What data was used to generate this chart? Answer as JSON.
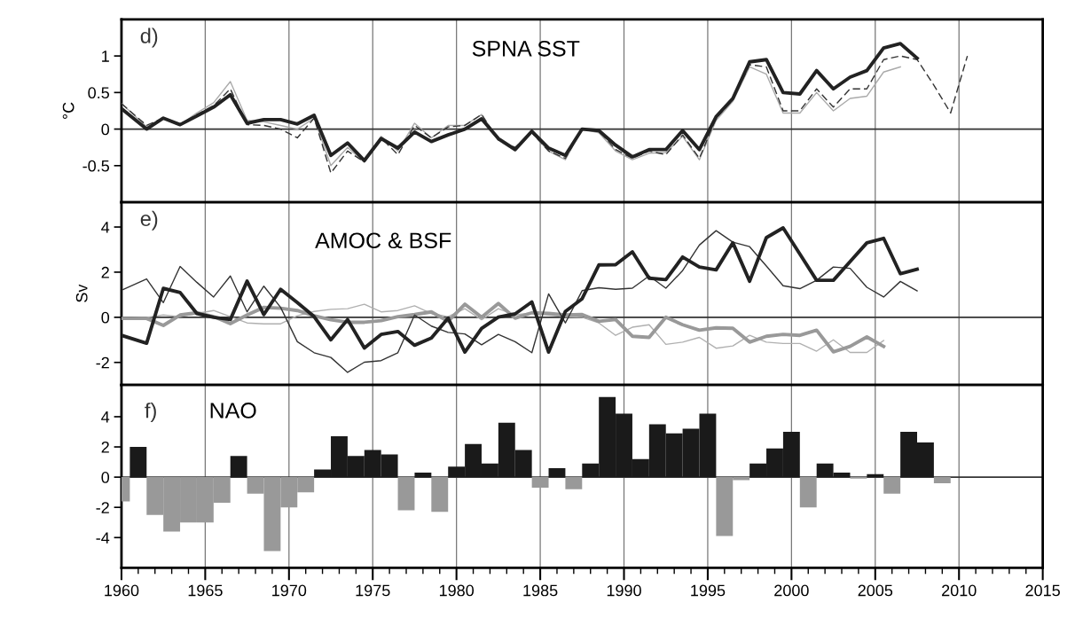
{
  "chart_data": [
    {
      "type": "line",
      "ylabel": "°C",
      "annotations": [
        "d)",
        "SPNA SST"
      ],
      "xlim": [
        1960,
        2015
      ],
      "xticks": [
        1960,
        1965,
        1970,
        1975,
        1980,
        1985,
        1990,
        1995,
        2000,
        2005,
        2010,
        2015
      ],
      "ylim": [
        -1.0,
        1.5
      ],
      "yticks": [
        -0.5,
        0,
        0.5,
        1
      ],
      "grid": "x",
      "tick_labels": "y",
      "ref_lines": [
        {
          "axis": "y",
          "value": 0,
          "color": "#333333"
        }
      ],
      "x": [
        1960,
        1961.5,
        1962.5,
        1963.5,
        1964.5,
        1965.5,
        1966.5,
        1967.5,
        1968.5,
        1969.5,
        1970.5,
        1971.5,
        1972.5,
        1973.5,
        1974.5,
        1975.5,
        1976.5,
        1977.5,
        1978.5,
        1979.5,
        1980.5,
        1981.5,
        1982.5,
        1983.5,
        1984.5,
        1985.5,
        1986.5,
        1987.5,
        1988.5,
        1989.5,
        1990.5,
        1991.5,
        1992.5,
        1993.5,
        1994.5,
        1995.5,
        1996.5,
        1997.5,
        1998.5,
        1999.5,
        2000.5,
        2001.5,
        2002.5,
        2003.5,
        2004.5,
        2005.5,
        2006.5,
        2007.5,
        2008.5,
        2009.5,
        2010.5
      ],
      "series": [
        {
          "color": "#aaaaaa",
          "line_style": "solid",
          "values": [
            0.35,
            0.03,
            0.15,
            0.06,
            0.22,
            0.36,
            0.65,
            0.12,
            0.1,
            0.05,
            0.0,
            0.15,
            -0.5,
            -0.25,
            -0.45,
            -0.1,
            -0.3,
            0.08,
            -0.12,
            0.05,
            0.05,
            0.2,
            -0.15,
            -0.3,
            -0.05,
            -0.3,
            -0.42,
            0.0,
            -0.05,
            -0.3,
            -0.42,
            -0.33,
            -0.32,
            -0.1,
            -0.42,
            0.12,
            0.38,
            0.85,
            0.75,
            0.22,
            0.22,
            0.5,
            0.25,
            0.42,
            0.45,
            0.78,
            0.85,
            null,
            null,
            null,
            null
          ]
        },
        {
          "color": "#333333",
          "line_style": "dashed",
          "values": [
            0.35,
            0.05,
            0.15,
            0.06,
            0.2,
            0.32,
            0.55,
            0.06,
            0.05,
            0.0,
            -0.12,
            0.15,
            -0.6,
            -0.3,
            -0.45,
            -0.12,
            -0.35,
            0.05,
            -0.12,
            0.03,
            0.05,
            0.2,
            -0.15,
            -0.25,
            -0.05,
            -0.3,
            -0.4,
            0.0,
            -0.02,
            -0.28,
            -0.4,
            -0.3,
            -0.35,
            -0.08,
            -0.4,
            0.15,
            0.4,
            0.88,
            0.85,
            0.25,
            0.25,
            0.55,
            0.3,
            0.55,
            0.55,
            0.95,
            1.0,
            0.95,
            0.6,
            0.22,
            1.0
          ]
        },
        {
          "color": "#222222",
          "line_style": "solid",
          "values": [
            0.28,
            0.0,
            0.15,
            0.06,
            0.18,
            0.3,
            0.47,
            0.08,
            0.13,
            0.13,
            0.07,
            0.19,
            -0.36,
            -0.19,
            -0.43,
            -0.13,
            -0.26,
            -0.04,
            -0.17,
            -0.08,
            0.0,
            0.14,
            -0.13,
            -0.28,
            -0.03,
            -0.26,
            -0.36,
            0.0,
            -0.02,
            -0.22,
            -0.38,
            -0.28,
            -0.28,
            -0.02,
            -0.28,
            0.17,
            0.42,
            0.92,
            0.95,
            0.5,
            0.48,
            0.8,
            0.55,
            0.71,
            0.8,
            1.11,
            1.17,
            0.97,
            null,
            null,
            null
          ]
        }
      ]
    },
    {
      "type": "line",
      "ylabel": "Sv",
      "annotations": [
        "e)",
        "AMOC & BSF"
      ],
      "xlim": [
        1960,
        2015
      ],
      "xticks": [
        1960,
        1965,
        1970,
        1975,
        1980,
        1985,
        1990,
        1995,
        2000,
        2005,
        2010,
        2015
      ],
      "ylim": [
        -3.0,
        5.1
      ],
      "yticks": [
        -2,
        0,
        2,
        4
      ],
      "grid": "x",
      "tick_labels": "y",
      "ref_lines": [
        {
          "axis": "y",
          "value": 0,
          "color": "#333333"
        }
      ],
      "x": [
        1960,
        1961.5,
        1962.5,
        1963.5,
        1964.5,
        1965.5,
        1966.5,
        1967.5,
        1968.5,
        1969.5,
        1970.5,
        1971.5,
        1972.5,
        1973.5,
        1974.5,
        1975.5,
        1976.5,
        1977.5,
        1978.5,
        1979.5,
        1980.5,
        1981.5,
        1982.5,
        1983.5,
        1984.5,
        1985.5,
        1986.5,
        1987.5,
        1988.5,
        1989.5,
        1990.5,
        1991.5,
        1992.5,
        1993.5,
        1994.5,
        1995.5,
        1996.5,
        1997.5,
        1998.5,
        1999.5,
        2000.5,
        2001.5,
        2002.5,
        2003.5,
        2004.5,
        2005.5,
        2006.5,
        2007.5
      ],
      "series": [
        {
          "color": "#b0b0b0",
          "values": [
            -0.05,
            0.0,
            0.1,
            0.03,
            0.17,
            0.3,
            0.03,
            -0.25,
            -0.29,
            -0.29,
            0.07,
            0.26,
            0.35,
            0.38,
            0.58,
            0.24,
            0.3,
            0.51,
            0.17,
            0.03,
            0.38,
            -0.11,
            0.38,
            0.1,
            0.2,
            0.1,
            0.03,
            0.0,
            -0.25,
            -0.8,
            -0.44,
            -0.33,
            -1.2,
            -1.1,
            -0.89,
            -1.37,
            -1.27,
            -0.8,
            -1.1,
            -1.16,
            -1.16,
            -1.5,
            -1.0,
            -1.56,
            -1.56,
            -1.03,
            null,
            null
          ]
        },
        {
          "color": "#999999",
          "values": [
            -0.05,
            -0.05,
            -0.36,
            0.1,
            0.2,
            0.03,
            -0.28,
            0.1,
            0.44,
            0.4,
            0.3,
            0.07,
            -0.11,
            -0.22,
            -0.22,
            -0.15,
            0.03,
            0.12,
            0.24,
            -0.18,
            0.58,
            0.0,
            0.61,
            -0.04,
            0.2,
            0.17,
            0.1,
            0.12,
            -0.18,
            -0.1,
            -0.84,
            -0.89,
            0.0,
            -0.33,
            -0.57,
            -0.47,
            -0.49,
            -1.1,
            -0.84,
            -0.76,
            -0.8,
            -0.57,
            -1.53,
            -1.29,
            -0.87,
            -1.29,
            null,
            null
          ]
        },
        {
          "color": "#333333",
          "values": [
            1.2,
            1.7,
            0.65,
            2.25,
            1.55,
            0.9,
            1.83,
            0.24,
            1.38,
            0.44,
            -1.08,
            -1.57,
            -1.78,
            -2.44,
            -1.99,
            -1.92,
            -1.57,
            0.1,
            -0.39,
            -0.67,
            -0.74,
            -1.22,
            -0.76,
            -1.08,
            -1.57,
            1.04,
            -0.25,
            1.18,
            1.31,
            1.24,
            1.29,
            1.83,
            1.29,
            2.07,
            3.2,
            3.84,
            3.33,
            3.13,
            2.27,
            1.4,
            1.27,
            1.64,
            2.23,
            2.17,
            1.33,
            0.9,
            1.59,
            1.17
          ]
        },
        {
          "color": "#222222",
          "values": [
            -0.8,
            -1.15,
            1.28,
            1.1,
            0.17,
            0.0,
            -0.1,
            1.6,
            0.12,
            1.24,
            0.65,
            0.03,
            -1.0,
            -0.1,
            -1.36,
            -0.76,
            -0.63,
            -1.24,
            -0.92,
            -0.04,
            -1.54,
            -0.49,
            0.01,
            0.15,
            0.68,
            -1.54,
            0.26,
            0.82,
            2.32,
            2.33,
            2.9,
            1.73,
            1.67,
            2.67,
            2.23,
            2.1,
            3.3,
            1.6,
            3.53,
            3.96,
            2.8,
            1.64,
            1.64,
            2.47,
            3.3,
            3.5,
            1.93,
            2.13
          ]
        }
      ]
    },
    {
      "type": "bar",
      "annotations": [
        "f)",
        "NAO"
      ],
      "xlim": [
        1960,
        2015
      ],
      "xticks": [
        1960,
        1965,
        1970,
        1975,
        1980,
        1985,
        1990,
        1995,
        2000,
        2005,
        2010,
        2015
      ],
      "ylim": [
        -6.0,
        6.1
      ],
      "yticks": [
        -4,
        -2,
        0,
        2,
        4
      ],
      "grid": "x",
      "ref_lines": [
        {
          "axis": "y",
          "value": 0,
          "color": "#333333"
        }
      ],
      "x": [
        1960,
        1961,
        1962,
        1963,
        1964,
        1965,
        1966,
        1967,
        1968,
        1969,
        1970,
        1971,
        1972,
        1973,
        1974,
        1975,
        1976,
        1977,
        1978,
        1979,
        1980,
        1981,
        1982,
        1983,
        1984,
        1985,
        1986,
        1987,
        1988,
        1989,
        1990,
        1991,
        1992,
        1993,
        1994,
        1995,
        1996,
        1997,
        1998,
        1999,
        2000,
        2001,
        2002,
        2003,
        2004,
        2005,
        2006,
        2007,
        2008,
        2009
      ],
      "values": [
        -1.6,
        2.0,
        -2.5,
        -3.6,
        -3.0,
        -3.0,
        -1.7,
        1.4,
        -1.1,
        -4.9,
        -2.0,
        -1.0,
        0.5,
        2.7,
        1.4,
        1.8,
        1.5,
        -2.2,
        0.3,
        -2.3,
        0.7,
        2.2,
        0.9,
        3.6,
        1.8,
        -0.7,
        0.6,
        -0.8,
        0.9,
        5.3,
        4.2,
        1.2,
        3.5,
        2.9,
        3.2,
        4.2,
        -3.9,
        -0.2,
        0.9,
        1.9,
        3.0,
        -2.0,
        0.9,
        0.3,
        -0.1,
        0.2,
        -1.1,
        3.0,
        2.3,
        -0.4
      ],
      "colors": [
        "#999999",
        "#1a1a1a",
        "#999999",
        "#999999",
        "#999999",
        "#999999",
        "#999999",
        "#1a1a1a",
        "#999999",
        "#999999",
        "#999999",
        "#999999",
        "#1a1a1a",
        "#1a1a1a",
        "#1a1a1a",
        "#1a1a1a",
        "#1a1a1a",
        "#999999",
        "#1a1a1a",
        "#999999",
        "#1a1a1a",
        "#1a1a1a",
        "#1a1a1a",
        "#1a1a1a",
        "#1a1a1a",
        "#999999",
        "#1a1a1a",
        "#999999",
        "#1a1a1a",
        "#1a1a1a",
        "#1a1a1a",
        "#1a1a1a",
        "#1a1a1a",
        "#1a1a1a",
        "#1a1a1a",
        "#1a1a1a",
        "#999999",
        "#999999",
        "#1a1a1a",
        "#1a1a1a",
        "#1a1a1a",
        "#999999",
        "#1a1a1a",
        "#1a1a1a",
        "#999999",
        "#1a1a1a",
        "#999999",
        "#1a1a1a",
        "#1a1a1a",
        "#999999"
      ]
    }
  ]
}
